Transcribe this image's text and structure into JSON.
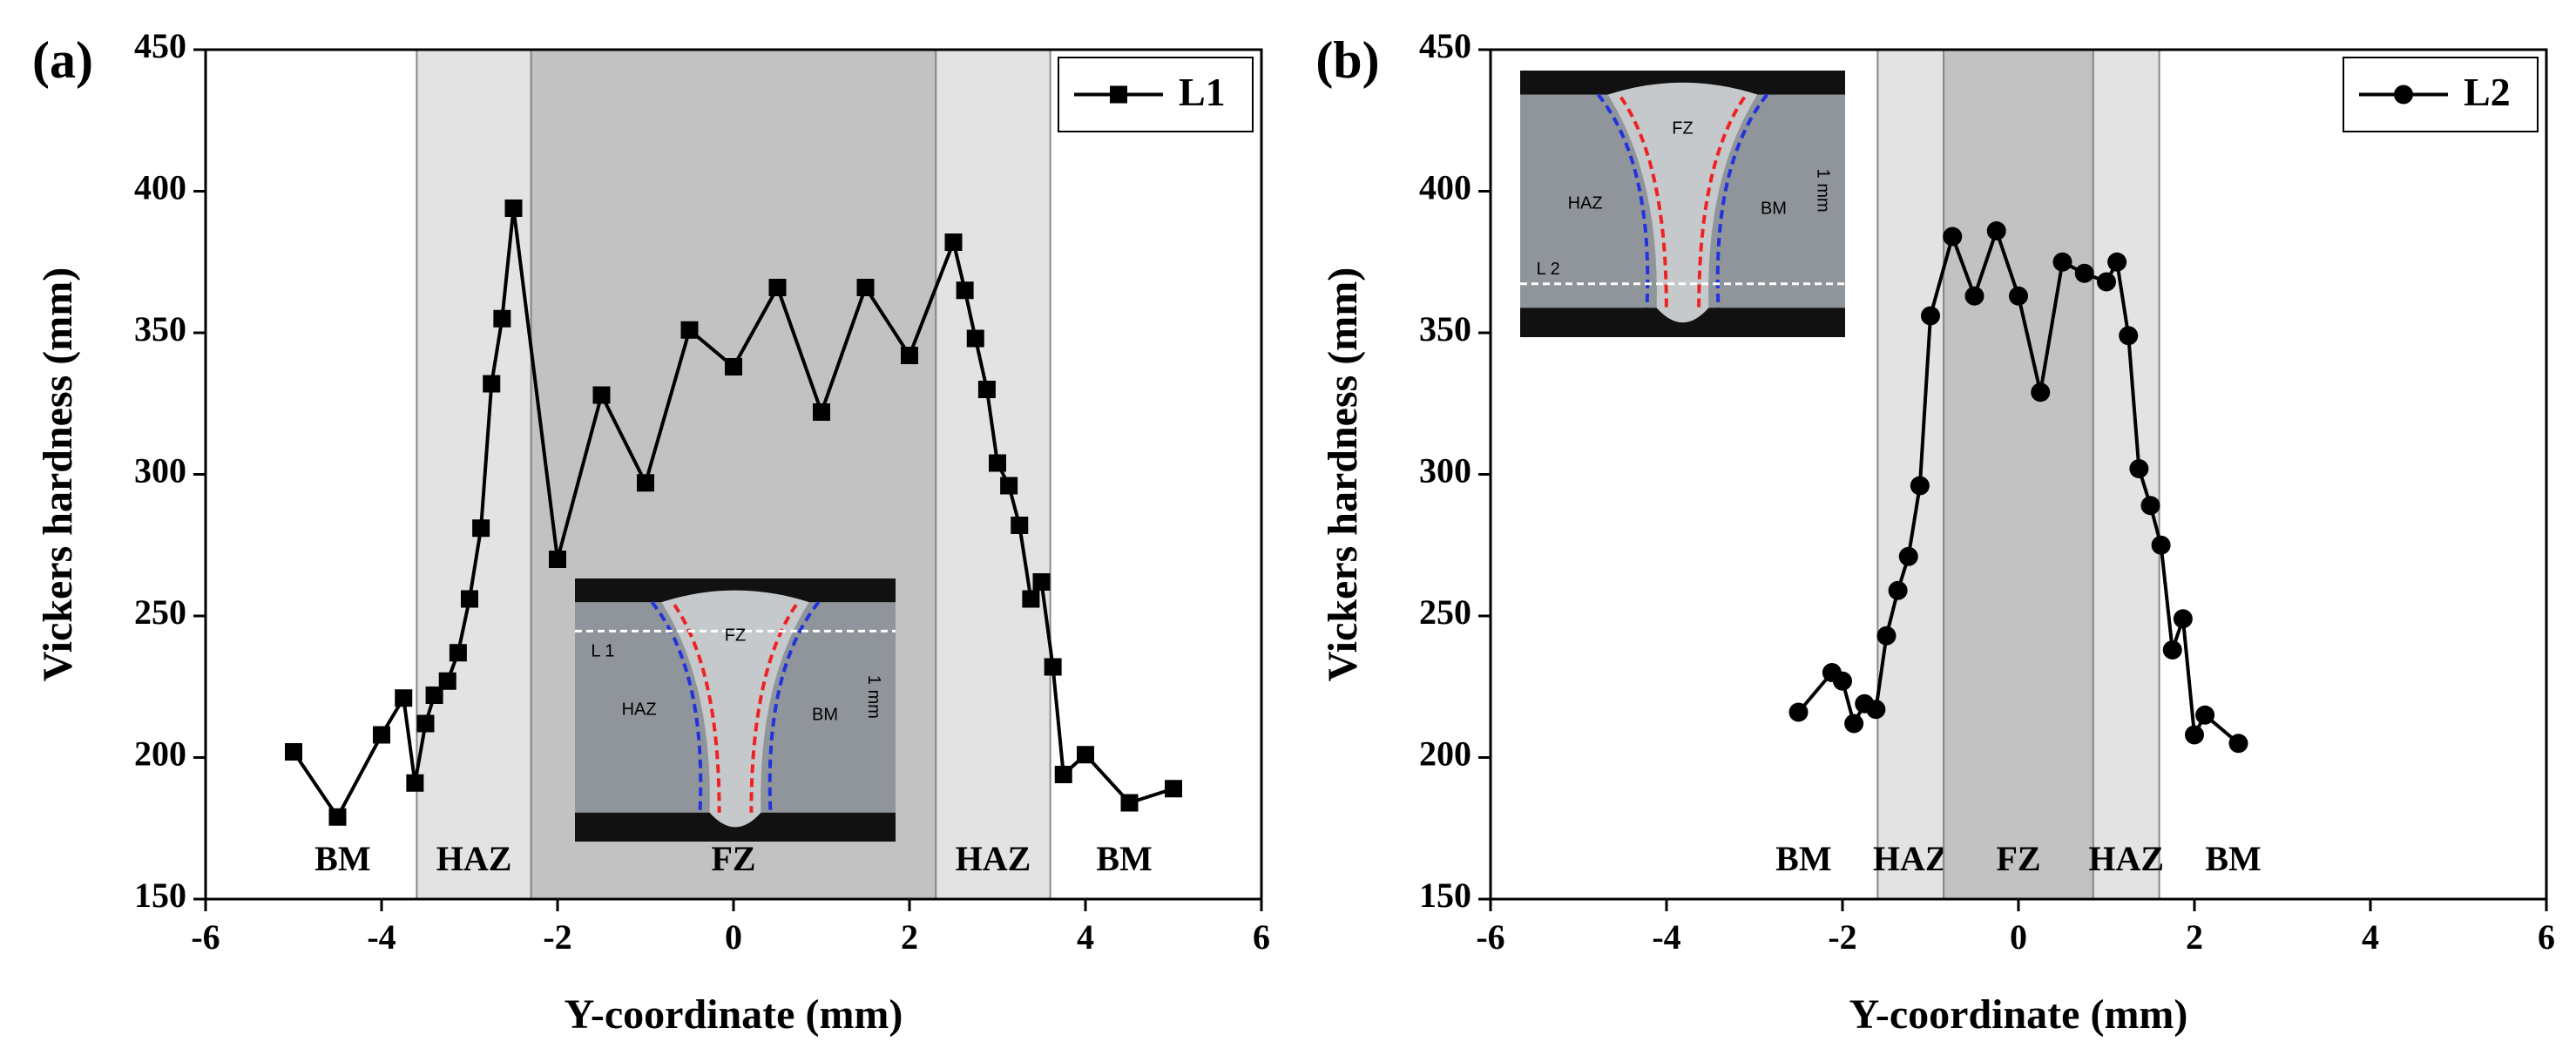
{
  "chart_data": [
    {
      "type": "line",
      "panel_label": "(a)",
      "xlabel": "Y-coordinate (mm)",
      "ylabel": "Vickers hardness (mm)",
      "xlim": [
        -6,
        6
      ],
      "xticks": [
        -6,
        -4,
        -2,
        0,
        2,
        4,
        6
      ],
      "ylim": [
        150,
        450
      ],
      "yticks": [
        150,
        200,
        250,
        300,
        350,
        400,
        450
      ],
      "legend": "upper right",
      "series": [
        {
          "name": "L1",
          "color": "#000000",
          "marker": "square",
          "x": [
            -5,
            -4.5,
            -4,
            -3.75,
            -3.62,
            -3.5,
            -3.4,
            -3.25,
            -3.13,
            -3,
            -2.87,
            -2.75,
            -2.63,
            -2.5,
            -2,
            -1.5,
            -1,
            -0.5,
            0,
            0.5,
            1,
            1.5,
            2,
            2.5,
            2.63,
            2.75,
            2.88,
            3,
            3.13,
            3.25,
            3.38,
            3.5,
            3.63,
            3.75,
            4,
            4.5,
            5
          ],
          "values": [
            202,
            179,
            208,
            221,
            191,
            212,
            222,
            227,
            237,
            256,
            281,
            332,
            355,
            394,
            270,
            328,
            297,
            351,
            338,
            366,
            322,
            366,
            342,
            382,
            365,
            348,
            330,
            304,
            296,
            282,
            256,
            262,
            232,
            194,
            201,
            184,
            189
          ]
        }
      ],
      "regions": [
        {
          "label": "BM"
        },
        {
          "label": "HAZ",
          "range": [
            -3.6,
            -2.3
          ],
          "color": "#e3e3e3"
        },
        {
          "label": "FZ",
          "range": [
            -2.3,
            2.3
          ],
          "color": "#c2c2c2"
        },
        {
          "label": "HAZ",
          "range": [
            2.3,
            3.6
          ],
          "color": "#e3e3e3"
        },
        {
          "label": "BM"
        }
      ],
      "inset": {
        "fz": "FZ",
        "haz": "HAZ",
        "bm": "BM",
        "line": "L 1",
        "scale": "1 mm"
      }
    },
    {
      "type": "line",
      "panel_label": "(b)",
      "xlabel": "Y-coordinate (mm)",
      "ylabel": "Vickers hardness (mm)",
      "xlim": [
        -6,
        6
      ],
      "xticks": [
        -6,
        -4,
        -2,
        0,
        2,
        4,
        6
      ],
      "ylim": [
        150,
        450
      ],
      "yticks": [
        150,
        200,
        250,
        300,
        350,
        400,
        450
      ],
      "legend": "upper right",
      "series": [
        {
          "name": "L2",
          "color": "#000000",
          "marker": "circle",
          "x": [
            -2.5,
            -2.12,
            -2,
            -1.87,
            -1.75,
            -1.62,
            -1.5,
            -1.37,
            -1.25,
            -1.12,
            -1,
            -0.75,
            -0.5,
            -0.25,
            0,
            0.25,
            0.5,
            0.75,
            1,
            1.12,
            1.25,
            1.37,
            1.5,
            1.62,
            1.75,
            1.87,
            2,
            2.12,
            2.5
          ],
          "values": [
            216,
            230,
            227,
            212,
            219,
            217,
            243,
            259,
            271,
            296,
            356,
            384,
            363,
            386,
            363,
            329,
            375,
            371,
            368,
            375,
            349,
            302,
            289,
            275,
            238,
            249,
            208,
            215,
            205
          ]
        }
      ],
      "regions": [
        {
          "label": "BM"
        },
        {
          "label": "HAZ",
          "range": [
            -1.6,
            -0.85
          ],
          "color": "#e3e3e3"
        },
        {
          "label": "FZ",
          "range": [
            -0.85,
            0.85
          ],
          "color": "#c2c2c2"
        },
        {
          "label": "HAZ",
          "range": [
            0.85,
            1.6
          ],
          "color": "#e3e3e3"
        },
        {
          "label": "BM"
        }
      ],
      "inset": {
        "fz": "FZ",
        "haz": "HAZ",
        "bm": "BM",
        "line": "L 2",
        "scale": "1 mm"
      }
    }
  ]
}
